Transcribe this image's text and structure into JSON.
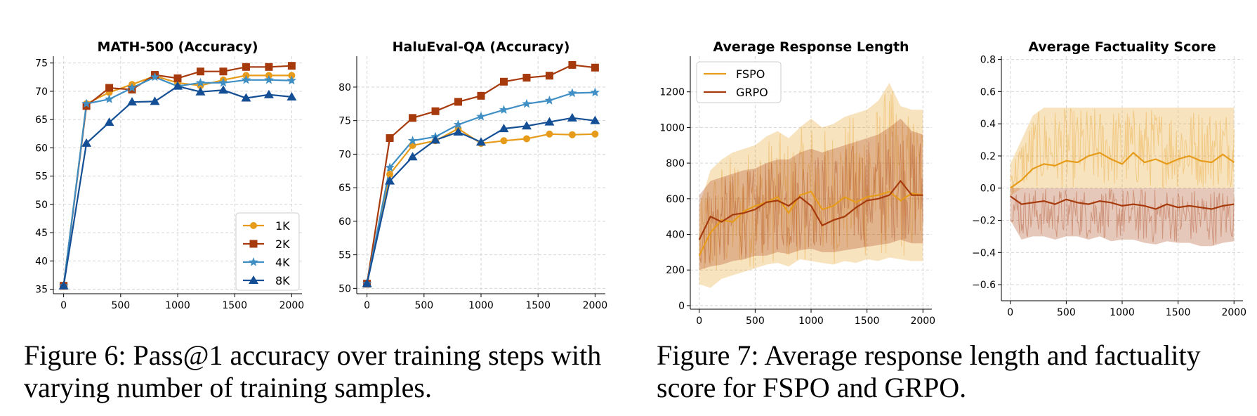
{
  "figure6_caption": "Figure 6: Pass@1 accuracy over training steps with varying number of training samples.",
  "figure7_caption": "Figure 7: Average response length and factuality score for FSPO and GRPO.",
  "chart_data": [
    {
      "type": "line",
      "title": "MATH-500 (Accuracy)",
      "xlabel": "",
      "ylabel": "",
      "xlim": [
        -90,
        2090
      ],
      "ylim": [
        34.2,
        76.2
      ],
      "xticks": [
        0,
        500,
        1000,
        1500,
        2000
      ],
      "yticks": [
        35,
        40,
        45,
        50,
        55,
        60,
        65,
        70,
        75
      ],
      "grid": true,
      "legend_position": "lower-right",
      "x": [
        0,
        200,
        400,
        600,
        800,
        1000,
        1200,
        1400,
        1600,
        1800,
        2000
      ],
      "series": [
        {
          "name": "1K",
          "color": "#e69c1a",
          "marker": "circle",
          "values": [
            35.6,
            67.8,
            69.8,
            71.2,
            72.7,
            71.5,
            71.0,
            72.0,
            72.8,
            72.8,
            72.8
          ]
        },
        {
          "name": "2K",
          "color": "#a63a0c",
          "marker": "square",
          "values": [
            35.6,
            67.4,
            70.6,
            70.3,
            72.9,
            72.3,
            73.5,
            73.5,
            74.3,
            74.3,
            74.5
          ]
        },
        {
          "name": "4K",
          "color": "#3f8fc5",
          "marker": "star",
          "values": [
            35.6,
            67.8,
            68.6,
            70.6,
            72.5,
            70.9,
            71.5,
            71.5,
            72.0,
            72.0,
            71.9
          ]
        },
        {
          "name": "8K",
          "color": "#144f96",
          "marker": "triangle",
          "values": [
            35.6,
            60.8,
            64.5,
            68.1,
            68.2,
            70.9,
            69.9,
            70.2,
            68.8,
            69.4,
            69.0
          ]
        }
      ]
    },
    {
      "type": "line",
      "title": "HaluEval-QA (Accuracy)",
      "xlabel": "",
      "ylabel": "",
      "xlim": [
        -90,
        2090
      ],
      "ylim": [
        49.2,
        84.6
      ],
      "xticks": [
        0,
        500,
        1000,
        1500,
        2000
      ],
      "yticks": [
        50,
        55,
        60,
        65,
        70,
        75,
        80
      ],
      "grid": true,
      "x": [
        0,
        200,
        400,
        600,
        800,
        1000,
        1200,
        1400,
        1600,
        1800,
        2000
      ],
      "series": [
        {
          "name": "1K",
          "color": "#e69c1a",
          "marker": "circle",
          "values": [
            50.7,
            67.0,
            71.3,
            72.0,
            73.8,
            71.6,
            72.0,
            72.3,
            73.0,
            72.9,
            73.0
          ]
        },
        {
          "name": "2K",
          "color": "#a63a0c",
          "marker": "square",
          "values": [
            50.7,
            72.4,
            75.4,
            76.4,
            77.8,
            78.7,
            80.8,
            81.4,
            81.7,
            83.3,
            82.9
          ]
        },
        {
          "name": "4K",
          "color": "#3f8fc5",
          "marker": "star",
          "values": [
            50.7,
            68.0,
            72.0,
            72.6,
            74.4,
            75.6,
            76.6,
            77.5,
            78.0,
            79.1,
            79.2
          ]
        },
        {
          "name": "8K",
          "color": "#144f96",
          "marker": "triangle",
          "values": [
            50.7,
            66.0,
            69.6,
            72.1,
            73.3,
            71.8,
            73.8,
            74.2,
            74.8,
            75.4,
            75.0
          ]
        }
      ]
    },
    {
      "type": "line",
      "title": "Average Response Length",
      "xlabel": "",
      "ylabel": "",
      "xlim": [
        -80,
        2080
      ],
      "ylim": [
        -20,
        1400
      ],
      "xticks": [
        0,
        500,
        1000,
        1500,
        2000
      ],
      "yticks": [
        0,
        200,
        400,
        600,
        800,
        1000,
        1200
      ],
      "grid": true,
      "legend_position": "upper-left",
      "x": [
        0,
        100,
        200,
        300,
        400,
        500,
        600,
        700,
        800,
        900,
        1000,
        1100,
        1200,
        1300,
        1400,
        1500,
        1600,
        1700,
        1800,
        1900,
        2000
      ],
      "series": [
        {
          "name": "FSPO",
          "color": "#e69c1a",
          "values": [
            280,
            410,
            480,
            470,
            530,
            560,
            580,
            610,
            520,
            620,
            640,
            540,
            560,
            610,
            580,
            610,
            620,
            640,
            590,
            630,
            620
          ],
          "band_low": [
            120,
            100,
            150,
            170,
            190,
            210,
            230,
            240,
            220,
            260,
            250,
            240,
            230,
            250,
            240,
            260,
            250,
            270,
            260,
            250,
            250
          ],
          "band_high": [
            560,
            760,
            820,
            860,
            880,
            900,
            950,
            980,
            940,
            1000,
            1050,
            1000,
            1020,
            1060,
            1080,
            1100,
            1150,
            1250,
            1120,
            1100,
            1100
          ]
        },
        {
          "name": "GRPO",
          "color": "#a63a0c",
          "values": [
            370,
            500,
            470,
            510,
            520,
            540,
            580,
            590,
            560,
            610,
            560,
            450,
            480,
            500,
            550,
            590,
            600,
            620,
            700,
            620,
            620
          ],
          "band_low": [
            200,
            220,
            230,
            250,
            260,
            280,
            280,
            300,
            290,
            310,
            320,
            300,
            300,
            310,
            320,
            330,
            340,
            350,
            370,
            350,
            350
          ],
          "band_high": [
            620,
            700,
            720,
            740,
            760,
            770,
            800,
            820,
            820,
            860,
            880,
            860,
            880,
            900,
            920,
            940,
            960,
            1000,
            1050,
            980,
            960
          ]
        }
      ]
    },
    {
      "type": "line",
      "title": "Average Factuality Score",
      "xlabel": "",
      "ylabel": "",
      "xlim": [
        -80,
        2080
      ],
      "ylim": [
        -0.7,
        0.82
      ],
      "xticks": [
        0,
        500,
        1000,
        1500,
        2000
      ],
      "yticks": [
        -0.6,
        -0.4,
        -0.2,
        0.0,
        0.2,
        0.4,
        0.6,
        0.8
      ],
      "grid": true,
      "x": [
        0,
        100,
        200,
        300,
        400,
        500,
        600,
        700,
        800,
        900,
        1000,
        1100,
        1200,
        1300,
        1400,
        1500,
        1600,
        1700,
        1800,
        1900,
        2000
      ],
      "series": [
        {
          "name": "FSPO",
          "color": "#e69c1a",
          "values": [
            0.0,
            0.05,
            0.12,
            0.15,
            0.14,
            0.17,
            0.16,
            0.2,
            0.22,
            0.18,
            0.15,
            0.22,
            0.16,
            0.18,
            0.15,
            0.18,
            0.2,
            0.17,
            0.16,
            0.21,
            0.16
          ],
          "band_low": [
            -0.05,
            0.0,
            0.0,
            0.0,
            0.0,
            0.0,
            0.0,
            0.0,
            0.0,
            0.0,
            0.0,
            0.0,
            0.0,
            0.0,
            0.0,
            0.0,
            0.0,
            0.0,
            0.0,
            0.0,
            0.0
          ],
          "band_high": [
            0.15,
            0.3,
            0.45,
            0.5,
            0.5,
            0.5,
            0.5,
            0.5,
            0.5,
            0.5,
            0.5,
            0.5,
            0.5,
            0.5,
            0.5,
            0.5,
            0.5,
            0.5,
            0.5,
            0.5,
            0.5
          ]
        },
        {
          "name": "GRPO",
          "color": "#a63a0c",
          "values": [
            -0.05,
            -0.1,
            -0.09,
            -0.08,
            -0.1,
            -0.07,
            -0.09,
            -0.1,
            -0.08,
            -0.09,
            -0.11,
            -0.1,
            -0.11,
            -0.13,
            -0.1,
            -0.12,
            -0.11,
            -0.12,
            -0.13,
            -0.11,
            -0.1
          ],
          "band_low": [
            -0.2,
            -0.32,
            -0.3,
            -0.3,
            -0.32,
            -0.3,
            -0.3,
            -0.32,
            -0.3,
            -0.33,
            -0.32,
            -0.32,
            -0.34,
            -0.35,
            -0.33,
            -0.34,
            -0.34,
            -0.36,
            -0.36,
            -0.34,
            -0.33
          ],
          "band_high": [
            0,
            0,
            0,
            0,
            0,
            0,
            0,
            0,
            0,
            0,
            0,
            0,
            0,
            0,
            0,
            0,
            0,
            0,
            0,
            0,
            0
          ]
        }
      ]
    }
  ]
}
